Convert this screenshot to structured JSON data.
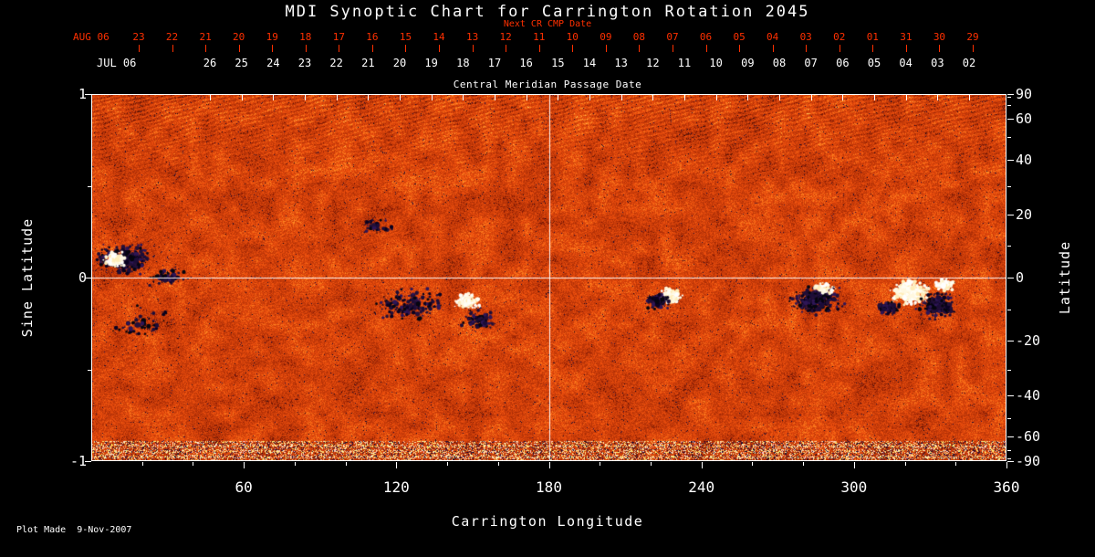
{
  "colors": {
    "background": "#000000",
    "text": "#ffffff",
    "red_accent": "#ff3000",
    "frame": "#ffffff"
  },
  "title": "MDI Synoptic Chart for Carrington Rotation 2045",
  "footer": {
    "plot_made": "Plot Made  9-Nov-2007"
  },
  "top_axis": {
    "next_cr_label": "Next CR CMP Date",
    "red_month_label": "AUG 06",
    "red_dates": [
      "23",
      "22",
      "21",
      "20",
      "19",
      "18",
      "17",
      "16",
      "15",
      "14",
      "13",
      "12",
      "11",
      "10",
      "09",
      "08",
      "07",
      "06",
      "05",
      "04",
      "03",
      "02",
      "01",
      "31",
      "30",
      "29"
    ],
    "white_month_label": "JUL 06",
    "white_dates": [
      "26",
      "25",
      "24",
      "23",
      "22",
      "21",
      "20",
      "19",
      "18",
      "17",
      "16",
      "15",
      "14",
      "13",
      "12",
      "11",
      "10",
      "09",
      "08",
      "07",
      "06",
      "05",
      "04",
      "03",
      "02"
    ],
    "cmp_label": "Central Meridian Passage Date"
  },
  "axes": {
    "left_label": "Sine Latitude",
    "left_ticks": [
      {
        "value": 1,
        "label": "1"
      },
      {
        "value": 0,
        "label": "0"
      },
      {
        "value": -1,
        "label": "-1"
      }
    ],
    "left_minor": [
      0.5,
      -0.5
    ],
    "right_label": "Latitude",
    "right_ticks": [
      {
        "value": 90,
        "label": "90"
      },
      {
        "value": 60,
        "label": "60"
      },
      {
        "value": 40,
        "label": "40"
      },
      {
        "value": 20,
        "label": "20"
      },
      {
        "value": 0,
        "label": "0"
      },
      {
        "value": -20,
        "label": "-20"
      },
      {
        "value": -40,
        "label": "-40"
      },
      {
        "value": -60,
        "label": "-60"
      },
      {
        "value": -90,
        "label": "-90"
      }
    ],
    "right_minor": [
      80,
      70,
      50,
      30,
      10,
      -10,
      -30,
      -50,
      -70,
      -80
    ],
    "bottom_label": "Carrington Longitude",
    "bottom_ticks": [
      {
        "value": 60,
        "label": "60"
      },
      {
        "value": 120,
        "label": "120"
      },
      {
        "value": 180,
        "label": "180"
      },
      {
        "value": 240,
        "label": "240"
      },
      {
        "value": 300,
        "label": "300"
      },
      {
        "value": 360,
        "label": "360"
      }
    ],
    "bottom_minor": [
      20,
      40,
      80,
      100,
      140,
      160,
      200,
      220,
      260,
      280,
      320,
      340
    ]
  },
  "chart_data": {
    "type": "heatmap",
    "title": "MDI Synoptic Chart for Carrington Rotation 2045",
    "xlabel": "Carrington Longitude",
    "ylabel_left": "Sine Latitude",
    "ylabel_right": "Latitude",
    "xlim": [
      0,
      360
    ],
    "ylim_sine_latitude": [
      -1,
      1
    ],
    "crosshair": {
      "longitude": 180,
      "sine_latitude": 0
    },
    "colormap": {
      "weak_field": "speckled orange-red noise field",
      "positive_polarity": "white / pale yellow patches",
      "negative_polarity": "dark navy / black patches"
    },
    "data_description": "Full-rotation line-of-sight photospheric magnetic field synoptic map: orange speckle background, bipolar active regions clustered near the equator, noisy bright striped band near the south-pole edge, white reference lines at longitude 180 and sine latitude 0.",
    "features": [
      {
        "type": "dark",
        "lon": 13,
        "slat": 0.1,
        "spread_lon": 13,
        "spread_slat": 0.1,
        "count": 280
      },
      {
        "type": "bright",
        "lon": 9,
        "slat": 0.1,
        "spread_lon": 5,
        "spread_slat": 0.05,
        "count": 130
      },
      {
        "type": "dark",
        "lon": 30,
        "slat": 0.0,
        "spread_lon": 9,
        "spread_slat": 0.06,
        "count": 60
      },
      {
        "type": "dark",
        "lon": 20,
        "slat": -0.25,
        "spread_lon": 18,
        "spread_slat": 0.12,
        "count": 50
      },
      {
        "type": "dark",
        "lon": 112,
        "slat": 0.28,
        "spread_lon": 8,
        "spread_slat": 0.05,
        "count": 35
      },
      {
        "type": "dark",
        "lon": 125,
        "slat": -0.15,
        "spread_lon": 17,
        "spread_slat": 0.11,
        "count": 150
      },
      {
        "type": "bright",
        "lon": 148,
        "slat": -0.13,
        "spread_lon": 7,
        "spread_slat": 0.05,
        "count": 100
      },
      {
        "type": "dark",
        "lon": 153,
        "slat": -0.23,
        "spread_lon": 9,
        "spread_slat": 0.07,
        "count": 80
      },
      {
        "type": "bright",
        "lon": 228,
        "slat": -0.1,
        "spread_lon": 5,
        "spread_slat": 0.05,
        "count": 120
      },
      {
        "type": "dark",
        "lon": 223,
        "slat": -0.13,
        "spread_lon": 6,
        "spread_slat": 0.06,
        "count": 80
      },
      {
        "type": "dark",
        "lon": 285,
        "slat": -0.12,
        "spread_lon": 12,
        "spread_slat": 0.1,
        "count": 240
      },
      {
        "type": "bright",
        "lon": 288,
        "slat": -0.06,
        "spread_lon": 6,
        "spread_slat": 0.04,
        "count": 60
      },
      {
        "type": "bright",
        "lon": 322,
        "slat": -0.08,
        "spread_lon": 9,
        "spread_slat": 0.08,
        "count": 280
      },
      {
        "type": "dark",
        "lon": 313,
        "slat": -0.17,
        "spread_lon": 6,
        "spread_slat": 0.05,
        "count": 70
      },
      {
        "type": "dark",
        "lon": 333,
        "slat": -0.15,
        "spread_lon": 9,
        "spread_slat": 0.09,
        "count": 190
      },
      {
        "type": "bright",
        "lon": 336,
        "slat": -0.04,
        "spread_lon": 5,
        "spread_slat": 0.04,
        "count": 70
      }
    ]
  }
}
